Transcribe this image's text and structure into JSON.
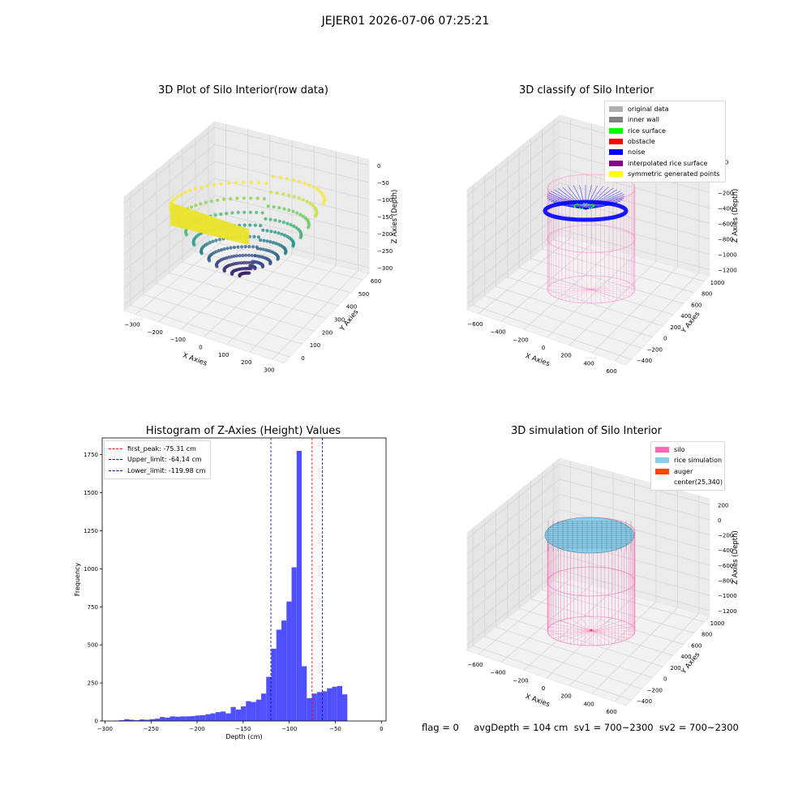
{
  "figure": {
    "suptitle": "JEJER01 2026-07-06 07:25:21",
    "status_line": "flag = 0     avgDepth = 104 cm  sv1 = 700~2300  sv2 = 700~2300"
  },
  "colors": {
    "silo": "#ff69b4",
    "rice_sim": "#87ceeb",
    "auger": "#ff4500",
    "noise": "#0000ff",
    "rice_surface": "#00ff00",
    "original": "#b0b0b0",
    "inner_wall": "#808080",
    "obstacle": "#ff0000",
    "interp": "#800080",
    "symmetric": "#ffff00",
    "hist": "#4c4cff"
  },
  "chart_data": [
    {
      "type": "scatter",
      "title": "3D Plot of Silo Interior(row data)",
      "xlabel": "X Axies",
      "ylabel": "Y Axies",
      "zlabel": "Z Axies (Depth)",
      "x_ticks": [
        "−300",
        "−200",
        "−100",
        "0",
        "100",
        "200",
        "300"
      ],
      "y_ticks": [
        "0",
        "100",
        "200",
        "300",
        "400",
        "500",
        "600"
      ],
      "z_ticks": [
        "0",
        "−50",
        "−100",
        "−150",
        "−200",
        "−250",
        "−300"
      ],
      "xlim": [
        -350,
        350
      ],
      "ylim": [
        -50,
        650
      ],
      "zlim": [
        -310,
        10
      ],
      "grid": true,
      "colormap": "viridis (by depth)",
      "description_points": {
        "surface_depth_range": [
          -300,
          -60
        ]
      }
    },
    {
      "type": "scatter",
      "title": "3D classify of Silo Interior",
      "xlabel": "X Axies",
      "ylabel": "Y Axies",
      "zlabel": "Z Axies (Depth)",
      "x_ticks": [
        "−600",
        "−400",
        "−200",
        "0",
        "200",
        "400",
        "600"
      ],
      "y_ticks": [
        "−400",
        "−200",
        "0",
        "200",
        "400",
        "600",
        "800",
        "1000"
      ],
      "z_ticks": [
        "200",
        "0",
        "−200",
        "−400",
        "−600",
        "−800",
        "−1000",
        "−1200"
      ],
      "grid": true,
      "legend_position": "upper-right",
      "legend": [
        "original data",
        "inner wall",
        "rice surface",
        "obstacle",
        "noise",
        "interpolated rice surface",
        "symmetric generated points"
      ]
    },
    {
      "type": "bar",
      "title": "Histogram of Z-Axies (Height) Values",
      "xlabel": "Depth (cm)",
      "ylabel": "Frequency",
      "xlim": [
        -303,
        5
      ],
      "ylim": [
        0,
        1860
      ],
      "x_ticks": [
        -300,
        -250,
        -200,
        -150,
        -100,
        -50,
        0
      ],
      "y_ticks": [
        0,
        250,
        500,
        750,
        1000,
        1250,
        1500,
        1750
      ],
      "bin_start": -290,
      "bin_width": 5.5,
      "values": [
        2,
        5,
        12,
        8,
        5,
        10,
        8,
        12,
        15,
        26,
        22,
        30,
        28,
        30,
        30,
        32,
        36,
        38,
        44,
        50,
        58,
        62,
        50,
        92,
        75,
        96,
        130,
        125,
        140,
        180,
        290,
        475,
        600,
        660,
        785,
        1010,
        1775,
        360,
        150,
        180,
        190,
        195,
        215,
        225,
        230,
        175
      ],
      "legend_position": "upper-left",
      "lines": [
        {
          "label": "first_peak: -75.31 cm",
          "x": -75.31,
          "color": "#ff0000"
        },
        {
          "label": "Upper_limit: -64.14 cm",
          "x": -64.14,
          "color": "#0000aa"
        },
        {
          "label": "Lower_limit: -119.98 cm",
          "x": -119.98,
          "color": "#0000aa"
        }
      ]
    },
    {
      "type": "area",
      "title": "3D simulation of Silo Interior",
      "xlabel": "X Axies",
      "ylabel": "Y Axies",
      "zlabel": "Z Axies (Depth)",
      "x_ticks": [
        "−600",
        "−400",
        "−200",
        "0",
        "200",
        "400",
        "600"
      ],
      "y_ticks": [
        "−400",
        "−200",
        "0",
        "200",
        "400",
        "600",
        "800",
        "1000"
      ],
      "z_ticks": [
        "200",
        "0",
        "−200",
        "−400",
        "−600",
        "−800",
        "−1000",
        "−1200"
      ],
      "grid": true,
      "legend_position": "upper-right",
      "legend": [
        "silo",
        "rice simulation",
        "auger",
        "center(25,340)"
      ]
    }
  ]
}
